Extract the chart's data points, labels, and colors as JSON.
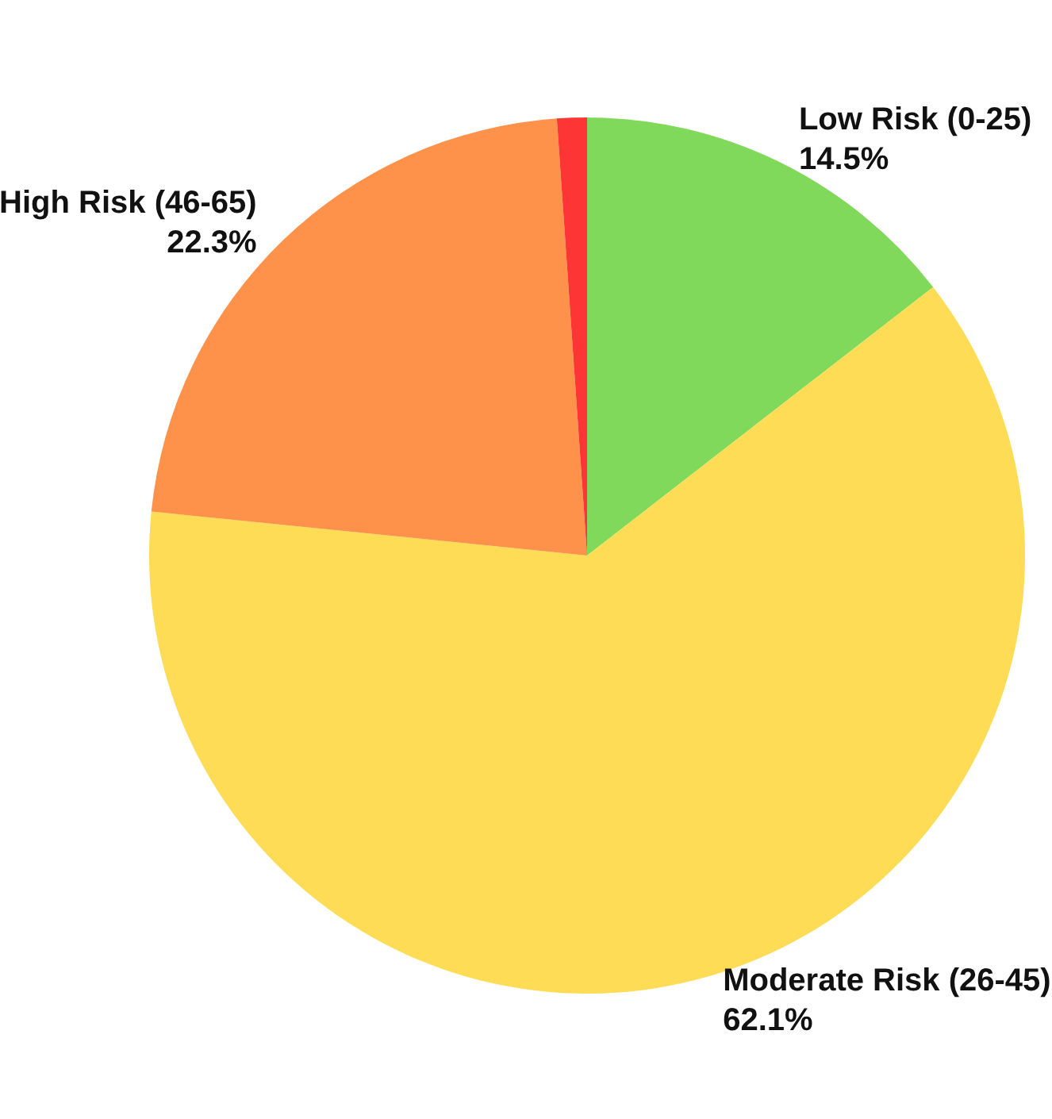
{
  "chart_data": {
    "type": "pie",
    "categories": [
      "Low Risk (0-25)",
      "Moderate Risk (26-45)",
      "High Risk (46-65)",
      null
    ],
    "values": [
      14.5,
      62.1,
      22.3,
      1.1
    ],
    "value_labels": [
      "14.5%",
      "62.1%",
      "22.3%",
      null
    ],
    "colors": [
      "#80d95a",
      "#fedc56",
      "#fe924b",
      "#fe3535"
    ],
    "legend": false
  }
}
